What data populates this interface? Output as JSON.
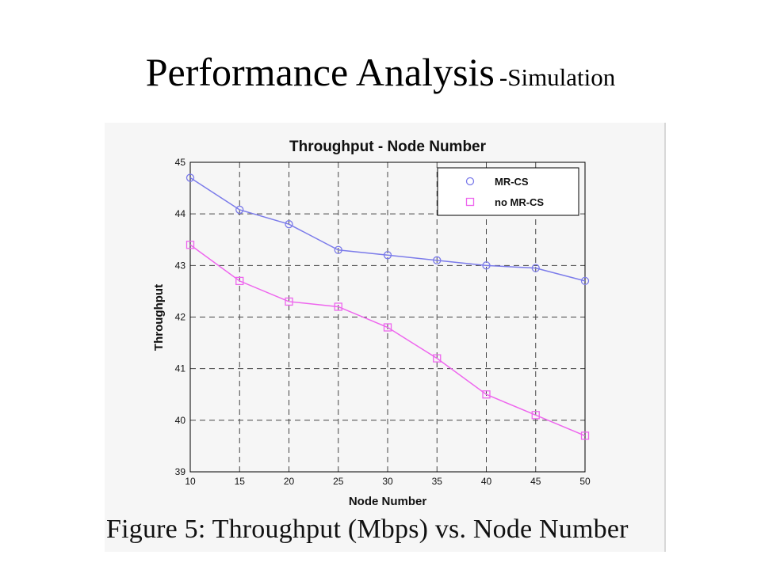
{
  "slide": {
    "title": "Performance Analysis",
    "subtitle": "-Simulation",
    "caption": "Figure 5: Throughput (Mbps) vs. Node Number"
  },
  "chart_data": {
    "type": "line",
    "title": "Throughput - Node Number",
    "xlabel": "Node Number",
    "ylabel": "Throughput",
    "x": [
      10,
      15,
      20,
      25,
      30,
      35,
      40,
      45,
      50
    ],
    "xlim": [
      10,
      50
    ],
    "ylim": [
      39,
      45
    ],
    "xticks": [
      "10",
      "15",
      "20",
      "25",
      "30",
      "35",
      "40",
      "45",
      "50"
    ],
    "yticks": [
      "39",
      "40",
      "41",
      "42",
      "43",
      "44",
      "45"
    ],
    "grid": true,
    "legend_position": "top-right",
    "series": [
      {
        "name": "MR-CS",
        "marker": "circle",
        "color": "#7b7bea",
        "values": [
          44.7,
          44.08,
          43.8,
          43.3,
          43.2,
          43.1,
          43.0,
          42.95,
          42.7
        ]
      },
      {
        "name": "no MR-CS",
        "marker": "square",
        "color": "#ee66ee",
        "values": [
          43.4,
          42.7,
          42.3,
          42.2,
          41.8,
          41.2,
          40.5,
          40.1,
          39.7
        ]
      }
    ]
  }
}
